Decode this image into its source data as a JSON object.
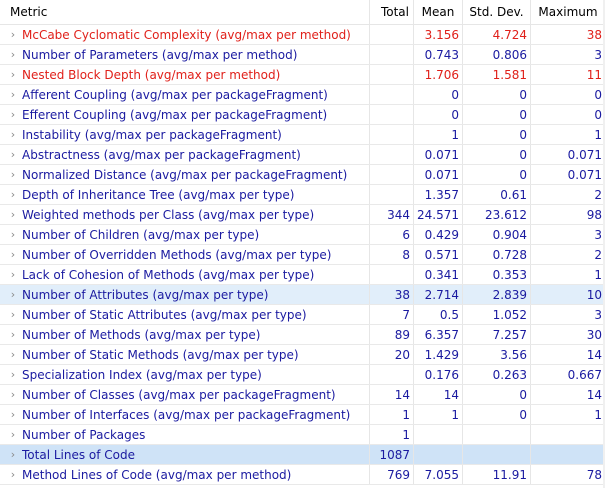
{
  "header": {
    "metric": "Metric",
    "total": "Total",
    "mean": "Mean",
    "std": "Std. Dev.",
    "max": "Maximum"
  },
  "rows": [
    {
      "metric": "McCabe Cyclomatic Complexity (avg/max per method)",
      "total": "",
      "mean": "3.156",
      "std": "4.724",
      "max": "38"
    },
    {
      "metric": "Number of Parameters (avg/max per method)",
      "total": "",
      "mean": "0.743",
      "std": "0.806",
      "max": "3"
    },
    {
      "metric": "Nested Block Depth (avg/max per method)",
      "total": "",
      "mean": "1.706",
      "std": "1.581",
      "max": "11"
    },
    {
      "metric": "Afferent Coupling (avg/max per packageFragment)",
      "total": "",
      "mean": "0",
      "std": "0",
      "max": "0"
    },
    {
      "metric": "Efferent Coupling (avg/max per packageFragment)",
      "total": "",
      "mean": "0",
      "std": "0",
      "max": "0"
    },
    {
      "metric": "Instability (avg/max per packageFragment)",
      "total": "",
      "mean": "1",
      "std": "0",
      "max": "1"
    },
    {
      "metric": "Abstractness (avg/max per packageFragment)",
      "total": "",
      "mean": "0.071",
      "std": "0",
      "max": "0.071"
    },
    {
      "metric": "Normalized Distance (avg/max per packageFragment)",
      "total": "",
      "mean": "0.071",
      "std": "0",
      "max": "0.071"
    },
    {
      "metric": "Depth of Inheritance Tree (avg/max per type)",
      "total": "",
      "mean": "1.357",
      "std": "0.61",
      "max": "2"
    },
    {
      "metric": "Weighted methods per Class (avg/max per type)",
      "total": "344",
      "mean": "24.571",
      "std": "23.612",
      "max": "98"
    },
    {
      "metric": "Number of Children (avg/max per type)",
      "total": "6",
      "mean": "0.429",
      "std": "0.904",
      "max": "3"
    },
    {
      "metric": "Number of Overridden Methods (avg/max per type)",
      "total": "8",
      "mean": "0.571",
      "std": "0.728",
      "max": "2"
    },
    {
      "metric": "Lack of Cohesion of Methods (avg/max per type)",
      "total": "",
      "mean": "0.341",
      "std": "0.353",
      "max": "1"
    },
    {
      "metric": "Number of Attributes (avg/max per type)",
      "total": "38",
      "mean": "2.714",
      "std": "2.839",
      "max": "10"
    },
    {
      "metric": "Number of Static Attributes (avg/max per type)",
      "total": "7",
      "mean": "0.5",
      "std": "1.052",
      "max": "3"
    },
    {
      "metric": "Number of Methods (avg/max per type)",
      "total": "89",
      "mean": "6.357",
      "std": "7.257",
      "max": "30"
    },
    {
      "metric": "Number of Static Methods (avg/max per type)",
      "total": "20",
      "mean": "1.429",
      "std": "3.56",
      "max": "14"
    },
    {
      "metric": "Specialization Index (avg/max per type)",
      "total": "",
      "mean": "0.176",
      "std": "0.263",
      "max": "0.667"
    },
    {
      "metric": "Number of Classes (avg/max per packageFragment)",
      "total": "14",
      "mean": "14",
      "std": "0",
      "max": "14"
    },
    {
      "metric": "Number of Interfaces (avg/max per packageFragment)",
      "total": "1",
      "mean": "1",
      "std": "0",
      "max": "1"
    },
    {
      "metric": "Number of Packages",
      "total": "1",
      "mean": "",
      "std": "",
      "max": ""
    },
    {
      "metric": "Total Lines of Code",
      "total": "1087",
      "mean": "",
      "std": "",
      "max": ""
    },
    {
      "metric": "Method Lines of Code (avg/max per method)",
      "total": "769",
      "mean": "7.055",
      "std": "11.91",
      "max": "78"
    }
  ],
  "icons": {
    "expand": "chevron-right-icon"
  },
  "colors": {
    "text": "#1a1aa0",
    "warning": "#e0201a",
    "selected": "#e1eefa",
    "selected_strong": "#cfe3f7"
  }
}
